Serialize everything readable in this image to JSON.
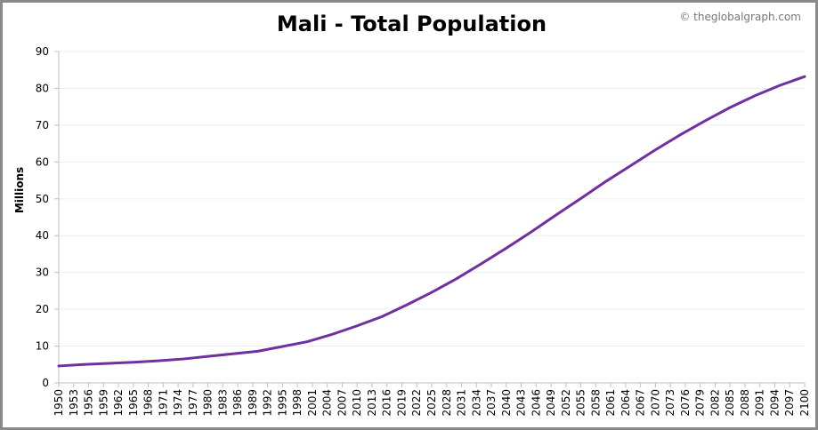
{
  "credit": "© theglobalgraph.com",
  "chart_data": {
    "type": "line",
    "title": "Mali - Total Population",
    "xlabel": "",
    "ylabel": "Millions",
    "xlim": [
      1950,
      2100
    ],
    "ylim": [
      0,
      90
    ],
    "y_ticks": [
      0,
      10,
      20,
      30,
      40,
      50,
      60,
      70,
      80,
      90
    ],
    "x_ticks": [
      1950,
      1953,
      1956,
      1959,
      1962,
      1965,
      1968,
      1971,
      1974,
      1977,
      1980,
      1983,
      1986,
      1989,
      1992,
      1995,
      1998,
      2001,
      2004,
      2007,
      2010,
      2013,
      2016,
      2019,
      2022,
      2025,
      2028,
      2031,
      2034,
      2037,
      2040,
      2043,
      2046,
      2049,
      2052,
      2055,
      2058,
      2061,
      2064,
      2067,
      2070,
      2073,
      2076,
      2079,
      2082,
      2085,
      2088,
      2091,
      2094,
      2097,
      2100
    ],
    "grid": true,
    "legend": "none",
    "line_color": "#7030a0",
    "series": [
      {
        "x": [
          1950,
          1955,
          1960,
          1965,
          1970,
          1975,
          1980,
          1985,
          1990,
          1995,
          2000,
          2005,
          2010,
          2015,
          2020,
          2025,
          2030,
          2035,
          2040,
          2045,
          2050,
          2055,
          2060,
          2065,
          2070,
          2075,
          2080,
          2085,
          2090,
          2095,
          2100
        ],
        "values": [
          4.6,
          5.0,
          5.3,
          5.6,
          6.0,
          6.5,
          7.2,
          7.9,
          8.6,
          9.9,
          11.2,
          13.2,
          15.5,
          18.0,
          21.2,
          24.6,
          28.3,
          32.4,
          36.6,
          41.0,
          45.6,
          50.1,
          54.7,
          59.0,
          63.3,
          67.4,
          71.2,
          74.8,
          78.0,
          80.8,
          83.2
        ]
      }
    ]
  }
}
